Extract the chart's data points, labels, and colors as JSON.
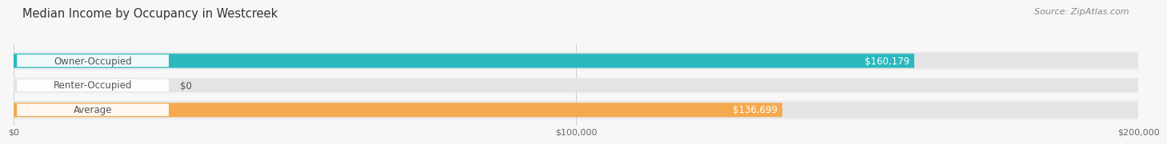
{
  "title": "Median Income by Occupancy in Westcreek",
  "source": "Source: ZipAtlas.com",
  "categories": [
    "Owner-Occupied",
    "Renter-Occupied",
    "Average"
  ],
  "values": [
    160179,
    0,
    136699
  ],
  "bar_colors": [
    "#2ab8be",
    "#c4aed4",
    "#f5a94e"
  ],
  "label_color": "#555555",
  "value_labels": [
    "$160,179",
    "$0",
    "$136,699"
  ],
  "xlim": [
    0,
    200000
  ],
  "xticks": [
    0,
    100000,
    200000
  ],
  "xtick_labels": [
    "$0",
    "$100,000",
    "$200,000"
  ],
  "title_fontsize": 10.5,
  "source_fontsize": 8,
  "bar_label_fontsize": 8.5,
  "value_fontsize": 8.5,
  "bar_height": 0.58,
  "background_color": "#f7f7f7",
  "title_color": "#333333",
  "source_color": "#888888",
  "bg_bar_color": "#e4e4e4",
  "separator_color": "#ffffff",
  "label_box_color": "#ffffff",
  "row_bg_colors": [
    "#eeeeee",
    "#f4f4f4",
    "#e8e8e8"
  ]
}
